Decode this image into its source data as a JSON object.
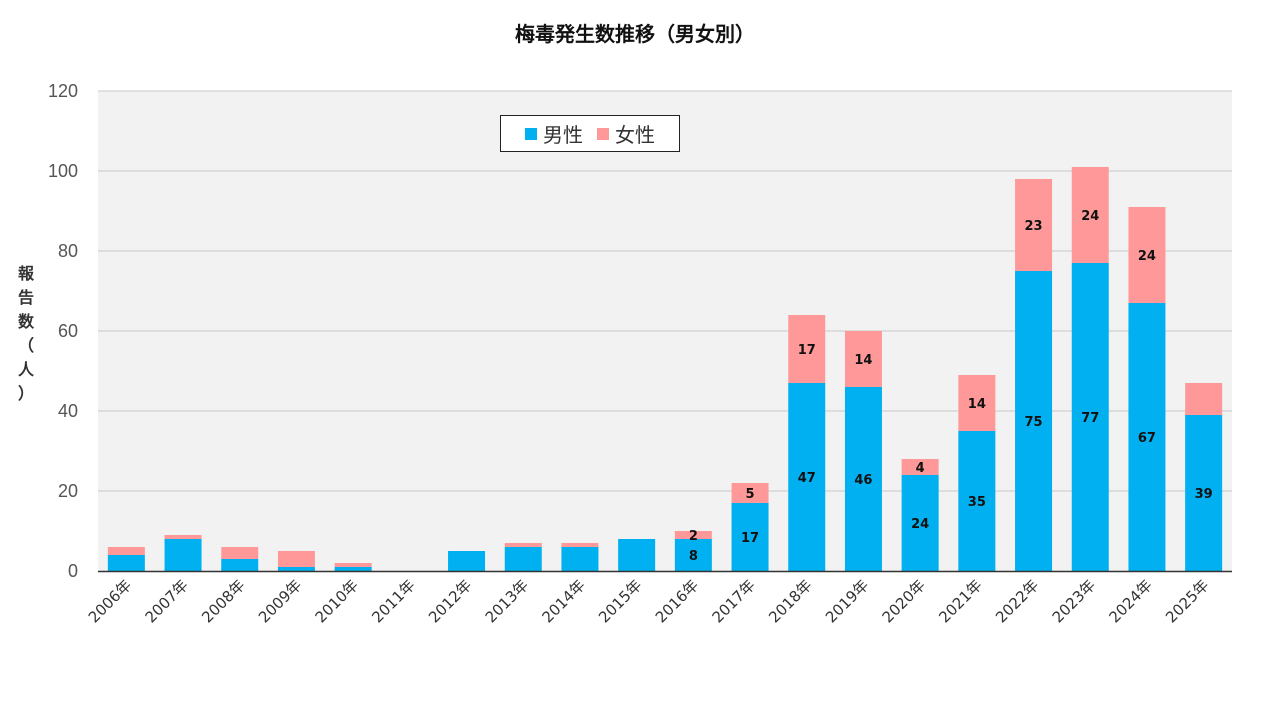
{
  "chart_data": {
    "type": "bar",
    "stacked": true,
    "title": "梅毒発生数推移（男女別）",
    "ylabel": "報告数（人）",
    "xlabel": "",
    "ylim": [
      0,
      120
    ],
    "yticks": [
      0,
      20,
      40,
      60,
      80,
      100,
      120
    ],
    "grid": true,
    "legend_position": "top-center",
    "categories": [
      "2006年",
      "2007年",
      "2008年",
      "2009年",
      "2010年",
      "2011年",
      "2012年",
      "2013年",
      "2014年",
      "2015年",
      "2016年",
      "2017年",
      "2018年",
      "2019年",
      "2020年",
      "2021年",
      "2022年",
      "2023年",
      "2024年",
      "2025年"
    ],
    "series": [
      {
        "name": "男性",
        "color": "#00b0f0",
        "values": [
          4,
          8,
          3,
          1,
          1,
          0,
          5,
          6,
          6,
          8,
          8,
          17,
          47,
          46,
          24,
          35,
          75,
          77,
          67,
          39
        ],
        "labels": [
          null,
          null,
          null,
          null,
          null,
          null,
          null,
          null,
          null,
          null,
          "8",
          "17",
          "47",
          "46",
          "24",
          "35",
          "75",
          "77",
          "67",
          "39"
        ]
      },
      {
        "name": "女性",
        "color": "#ff9999",
        "values": [
          2,
          1,
          3,
          4,
          1,
          0,
          0,
          1,
          1,
          0,
          2,
          5,
          17,
          14,
          4,
          14,
          23,
          24,
          24,
          8
        ],
        "labels": [
          null,
          null,
          null,
          null,
          null,
          null,
          null,
          null,
          null,
          null,
          "2",
          "5",
          "17",
          "14",
          "4",
          "14",
          "23",
          "24",
          "24",
          null
        ]
      }
    ]
  }
}
